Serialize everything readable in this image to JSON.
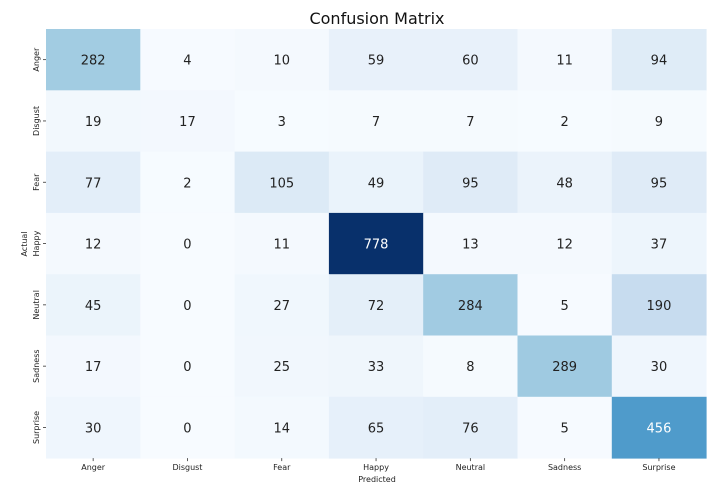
{
  "chart_data": {
    "type": "heatmap",
    "title": "Confusion Matrix",
    "xlabel": "Predicted",
    "ylabel": "Actual",
    "x_categories": [
      "Anger",
      "Disgust",
      "Fear",
      "Happy",
      "Neutral",
      "Sadness",
      "Surprise"
    ],
    "y_categories": [
      "Anger",
      "Disgust",
      "Fear",
      "Happy",
      "Neutral",
      "Sadness",
      "Surprise"
    ],
    "values": [
      [
        282,
        4,
        10,
        59,
        60,
        11,
        94
      ],
      [
        19,
        17,
        3,
        7,
        7,
        2,
        9
      ],
      [
        77,
        2,
        105,
        49,
        95,
        48,
        95
      ],
      [
        12,
        0,
        11,
        778,
        13,
        12,
        37
      ],
      [
        45,
        0,
        27,
        72,
        284,
        5,
        190
      ],
      [
        17,
        0,
        25,
        33,
        8,
        289,
        30
      ],
      [
        30,
        0,
        14,
        65,
        76,
        5,
        456
      ]
    ],
    "colormap": "Blues",
    "value_range": [
      0,
      778
    ],
    "annotated": true,
    "colorbar": false
  }
}
